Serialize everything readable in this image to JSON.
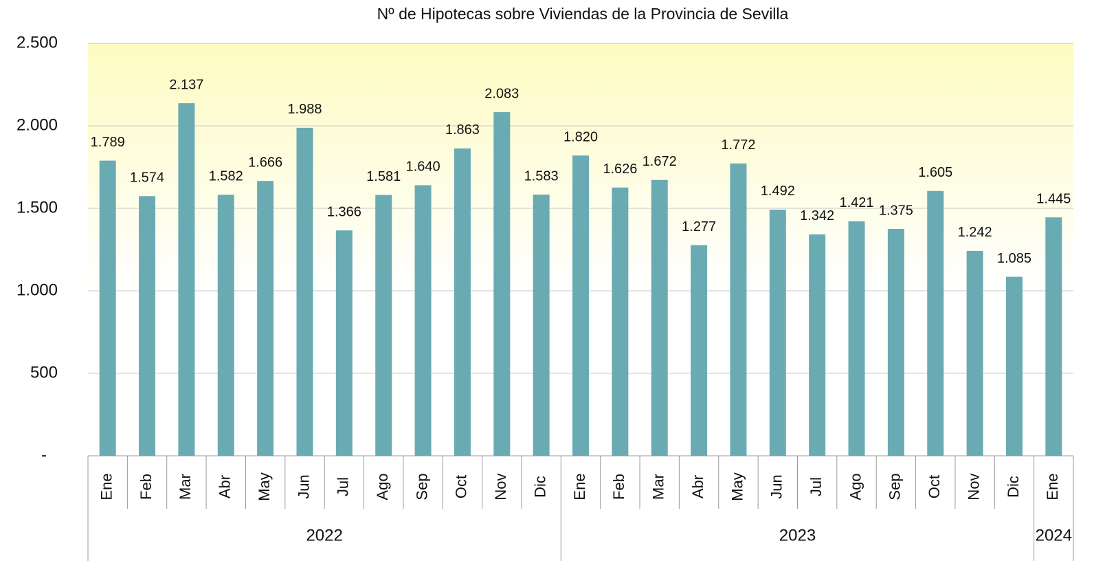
{
  "chart_data": {
    "type": "bar",
    "title": "Nº de Hipotecas sobre Viviendas de la Provincia de Sevilla",
    "categories": [
      "Ene",
      "Feb",
      "Mar",
      "Abr",
      "May",
      "Jun",
      "Jul",
      "Ago",
      "Sep",
      "Oct",
      "Nov",
      "Dic",
      "Ene",
      "Feb",
      "Mar",
      "Abr",
      "May",
      "Jun",
      "Jul",
      "Ago",
      "Sep",
      "Oct",
      "Nov",
      "Dic",
      "Ene"
    ],
    "groups": [
      {
        "label": "2022",
        "span": 12
      },
      {
        "label": "2023",
        "span": 12
      },
      {
        "label": "2024",
        "span": 1
      }
    ],
    "values": [
      1789,
      1574,
      2137,
      1582,
      1666,
      1988,
      1366,
      1581,
      1640,
      1863,
      2083,
      1583,
      1820,
      1626,
      1672,
      1277,
      1772,
      1492,
      1342,
      1421,
      1375,
      1605,
      1242,
      1085,
      1445
    ],
    "value_labels": [
      "1.789",
      "1.574",
      "2.137",
      "1.582",
      "1.666",
      "1.988",
      "1.366",
      "1.581",
      "1.640",
      "1.863",
      "2.083",
      "1.583",
      "1.820",
      "1.626",
      "1.672",
      "1.277",
      "1.772",
      "1.492",
      "1.342",
      "1.421",
      "1.375",
      "1.605",
      "1.242",
      "1.085",
      "1.445"
    ],
    "color": "#6aabb3",
    "ylim": [
      0,
      2500
    ],
    "yticks": [
      {
        "value": 0,
        "label": "-"
      },
      500,
      {
        "value": 1000,
        "label": "1.000"
      },
      {
        "value": 1500,
        "label": "1.500"
      },
      {
        "value": 2000,
        "label": "2.000"
      },
      {
        "value": 2500,
        "label": "2.500"
      }
    ],
    "grid": true
  }
}
